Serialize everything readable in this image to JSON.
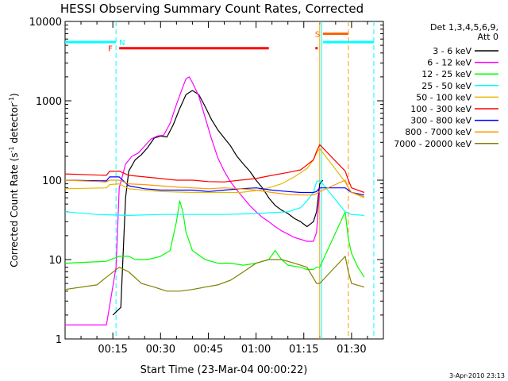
{
  "chart_data": {
    "type": "line",
    "title": "HESSI Observing Summary Count Rates, Corrected",
    "xlabel": "Start Time (23-Mar-04 00:00:22)",
    "ylabel_main": "Corrected Count Rate (s",
    "ylabel_sup1": "-1",
    "ylabel_mid": " detector",
    "ylabel_sup2": "-1",
    "ylabel_end": ")",
    "yscale": "log",
    "ylim": [
      1,
      10000
    ],
    "xlim_minutes": [
      0,
      100
    ],
    "x_ticks": [
      "00:15",
      "00:30",
      "00:45",
      "01:00",
      "01:15",
      "01:30"
    ],
    "y_ticks": [
      "1",
      "10",
      "100",
      "1000",
      "10000"
    ],
    "legend_header": [
      "Det 1,3,4,5,6,9,",
      "Att 0"
    ],
    "footer_date": "3-Apr-2010 23:13",
    "flag_labels": {
      "N": "N",
      "F": "F",
      "S": "S"
    },
    "series": [
      {
        "name": "3 - 6 keV",
        "color": "#000000",
        "points": [
          [
            15,
            2
          ],
          [
            17.5,
            2.5
          ],
          [
            19,
            60
          ],
          [
            20,
            130
          ],
          [
            22,
            180
          ],
          [
            24,
            210
          ],
          [
            26,
            260
          ],
          [
            28,
            340
          ],
          [
            30,
            360
          ],
          [
            32,
            350
          ],
          [
            34,
            500
          ],
          [
            36,
            800
          ],
          [
            38,
            1200
          ],
          [
            40,
            1350
          ],
          [
            42,
            1200
          ],
          [
            44,
            850
          ],
          [
            46,
            580
          ],
          [
            48,
            430
          ],
          [
            50,
            340
          ],
          [
            52,
            270
          ],
          [
            54,
            200
          ],
          [
            56,
            160
          ],
          [
            58,
            130
          ],
          [
            60,
            100
          ],
          [
            62,
            80
          ],
          [
            64,
            60
          ],
          [
            66,
            48
          ],
          [
            68,
            42
          ],
          [
            70,
            38
          ],
          [
            72,
            33
          ],
          [
            74,
            30
          ],
          [
            76,
            26
          ],
          [
            78,
            30
          ],
          [
            79,
            40
          ],
          [
            80,
            90
          ],
          [
            81,
            100
          ]
        ]
      },
      {
        "name": "6 - 12 keV",
        "color": "#ff00ff",
        "points": [
          [
            0,
            1.5
          ],
          [
            13,
            1.5
          ],
          [
            16,
            8
          ],
          [
            17,
            80
          ],
          [
            19,
            160
          ],
          [
            21,
            200
          ],
          [
            23,
            220
          ],
          [
            25,
            270
          ],
          [
            27,
            330
          ],
          [
            29,
            360
          ],
          [
            31,
            370
          ],
          [
            33,
            520
          ],
          [
            35,
            900
          ],
          [
            37,
            1500
          ],
          [
            38,
            1900
          ],
          [
            39,
            2000
          ],
          [
            40,
            1700
          ],
          [
            42,
            1150
          ],
          [
            44,
            620
          ],
          [
            46,
            330
          ],
          [
            48,
            190
          ],
          [
            50,
            130
          ],
          [
            52,
            95
          ],
          [
            54,
            75
          ],
          [
            56,
            60
          ],
          [
            58,
            48
          ],
          [
            60,
            40
          ],
          [
            62,
            34
          ],
          [
            64,
            30
          ],
          [
            66,
            26
          ],
          [
            68,
            23
          ],
          [
            70,
            21
          ],
          [
            72,
            19
          ],
          [
            74,
            18
          ],
          [
            76,
            17
          ],
          [
            78,
            17
          ],
          [
            79,
            22
          ],
          [
            80,
            80
          ]
        ]
      },
      {
        "name": "12 - 25 keV",
        "color": "#00ff00",
        "points": [
          [
            0,
            9
          ],
          [
            13,
            9.5
          ],
          [
            17,
            11
          ],
          [
            20,
            11
          ],
          [
            22,
            10
          ],
          [
            26,
            10
          ],
          [
            30,
            11
          ],
          [
            33,
            13
          ],
          [
            35,
            30
          ],
          [
            36,
            55
          ],
          [
            37,
            40
          ],
          [
            38,
            22
          ],
          [
            40,
            13
          ],
          [
            44,
            10
          ],
          [
            48,
            9
          ],
          [
            52,
            9
          ],
          [
            56,
            8.5
          ],
          [
            60,
            9
          ],
          [
            64,
            10
          ],
          [
            66,
            13
          ],
          [
            68,
            10
          ],
          [
            70,
            8.5
          ],
          [
            74,
            8
          ],
          [
            76,
            7.5
          ],
          [
            78,
            7.5
          ],
          [
            79,
            8
          ],
          [
            80,
            8
          ],
          [
            88,
            40
          ],
          [
            89,
            18
          ],
          [
            90,
            12
          ],
          [
            92,
            8
          ],
          [
            94,
            6
          ]
        ]
      },
      {
        "name": "25 - 50 keV",
        "color": "#00ffff",
        "points": [
          [
            0,
            40
          ],
          [
            10,
            37
          ],
          [
            20,
            36
          ],
          [
            30,
            37
          ],
          [
            40,
            37
          ],
          [
            50,
            37
          ],
          [
            60,
            38
          ],
          [
            70,
            40
          ],
          [
            74,
            45
          ],
          [
            76,
            55
          ],
          [
            78,
            70
          ],
          [
            79,
            95
          ],
          [
            80,
            100
          ],
          [
            88,
            40
          ],
          [
            90,
            37
          ],
          [
            94,
            36
          ]
        ]
      },
      {
        "name": "50 - 100 keV",
        "color": "#e6b800",
        "points": [
          [
            0,
            78
          ],
          [
            13,
            80
          ],
          [
            14,
            88
          ],
          [
            17,
            90
          ],
          [
            20,
            78
          ],
          [
            30,
            72
          ],
          [
            40,
            70
          ],
          [
            50,
            70
          ],
          [
            55,
            70
          ],
          [
            60,
            74
          ],
          [
            64,
            80
          ],
          [
            68,
            90
          ],
          [
            72,
            110
          ],
          [
            76,
            140
          ],
          [
            78,
            180
          ],
          [
            79,
            220
          ],
          [
            80,
            250
          ],
          [
            88,
            95
          ],
          [
            89,
            80
          ],
          [
            90,
            70
          ],
          [
            94,
            60
          ]
        ]
      },
      {
        "name": "100 - 300 keV",
        "color": "#ff0000",
        "points": [
          [
            0,
            120
          ],
          [
            13,
            115
          ],
          [
            14,
            130
          ],
          [
            17,
            130
          ],
          [
            20,
            115
          ],
          [
            25,
            110
          ],
          [
            30,
            105
          ],
          [
            35,
            100
          ],
          [
            40,
            100
          ],
          [
            45,
            96
          ],
          [
            50,
            95
          ],
          [
            55,
            100
          ],
          [
            60,
            105
          ],
          [
            65,
            115
          ],
          [
            70,
            125
          ],
          [
            74,
            135
          ],
          [
            78,
            180
          ],
          [
            79,
            230
          ],
          [
            80,
            280
          ],
          [
            88,
            130
          ],
          [
            89,
            100
          ],
          [
            90,
            80
          ],
          [
            94,
            70
          ]
        ]
      },
      {
        "name": "300 - 800 keV",
        "color": "#0000ff",
        "points": [
          [
            0,
            100
          ],
          [
            13,
            98
          ],
          [
            14,
            110
          ],
          [
            17,
            110
          ],
          [
            20,
            85
          ],
          [
            25,
            78
          ],
          [
            30,
            75
          ],
          [
            35,
            75
          ],
          [
            40,
            75
          ],
          [
            45,
            72
          ],
          [
            50,
            75
          ],
          [
            55,
            78
          ],
          [
            60,
            80
          ],
          [
            65,
            75
          ],
          [
            70,
            72
          ],
          [
            74,
            70
          ],
          [
            78,
            70
          ],
          [
            79,
            72
          ],
          [
            80,
            80
          ],
          [
            88,
            80
          ],
          [
            90,
            70
          ],
          [
            94,
            65
          ]
        ]
      },
      {
        "name": "800 - 7000 keV",
        "color": "#ff9900",
        "points": [
          [
            0,
            100
          ],
          [
            13,
            95
          ],
          [
            14,
            100
          ],
          [
            17,
            100
          ],
          [
            20,
            90
          ],
          [
            25,
            88
          ],
          [
            30,
            85
          ],
          [
            35,
            82
          ],
          [
            40,
            80
          ],
          [
            45,
            78
          ],
          [
            50,
            80
          ],
          [
            55,
            78
          ],
          [
            60,
            75
          ],
          [
            65,
            70
          ],
          [
            70,
            66
          ],
          [
            74,
            65
          ],
          [
            78,
            65
          ],
          [
            79,
            68
          ],
          [
            80,
            72
          ],
          [
            88,
            100
          ],
          [
            89,
            80
          ],
          [
            90,
            70
          ],
          [
            94,
            62
          ]
        ]
      },
      {
        "name": "7000 - 20000 keV",
        "color": "#808000",
        "points": [
          [
            0,
            4.2
          ],
          [
            10,
            4.8
          ],
          [
            13,
            6
          ],
          [
            17,
            8
          ],
          [
            20,
            7
          ],
          [
            24,
            5
          ],
          [
            28,
            4.5
          ],
          [
            32,
            4
          ],
          [
            36,
            4
          ],
          [
            40,
            4.2
          ],
          [
            44,
            4.5
          ],
          [
            48,
            4.8
          ],
          [
            52,
            5.5
          ],
          [
            56,
            7
          ],
          [
            60,
            9
          ],
          [
            64,
            10
          ],
          [
            68,
            10
          ],
          [
            72,
            9
          ],
          [
            76,
            8
          ],
          [
            79,
            5
          ],
          [
            80,
            5
          ],
          [
            88,
            11
          ],
          [
            89,
            7
          ],
          [
            90,
            5
          ],
          [
            94,
            4.5
          ]
        ]
      }
    ],
    "flags": {
      "n_bar": {
        "color": "#00ffff",
        "segments": [
          [
            0,
            16
          ],
          [
            81,
            97
          ]
        ],
        "value": 5500
      },
      "f_bar": {
        "color": "#ff0000",
        "segments": [
          [
            17,
            64
          ]
        ],
        "dots": [
          79
        ],
        "value": 4600
      },
      "s_bar": {
        "color": "#ff6600",
        "segments": [
          [
            81,
            89
          ]
        ],
        "value": 7000
      },
      "vlines": [
        {
          "x": 16,
          "color": "#00ffff",
          "dash": true
        },
        {
          "x": 80.6,
          "color": "#00ffff",
          "dash": false
        },
        {
          "x": 80,
          "color": "#ff9900",
          "dash": false
        },
        {
          "x": 89,
          "color": "#ff9900",
          "dash": true
        },
        {
          "x": 97,
          "color": "#00ffff",
          "dash": true
        }
      ]
    }
  }
}
